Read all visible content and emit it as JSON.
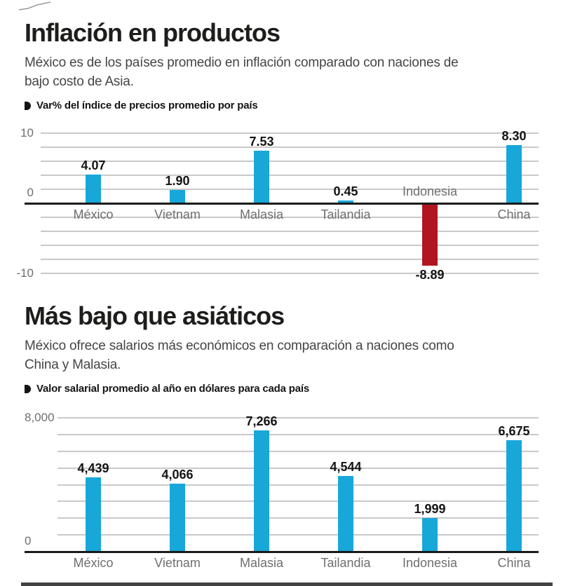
{
  "page": {
    "background": "#ffffff"
  },
  "colors": {
    "bar_blue": "#18a7d9",
    "bar_red": "#b0161f",
    "axis_line": "#1a1a1a",
    "gridline": "#c9c9c9",
    "title_text": "#1d1d1b",
    "subtitle_text": "#454545",
    "muted_label": "#6f6f6f",
    "value_label": "#141414",
    "footer_bar": "#424242"
  },
  "sections": [
    {
      "title": "Inflación en productos",
      "subtitle_lines": [
        "México es de los países promedio en inflación comparado con naciones de",
        "bajo costo de Asia."
      ],
      "legend_label": "Var% del índice de precios promedio por país"
    },
    {
      "title": "Más bajo que asiáticos",
      "subtitle_lines": [
        "México ofrece salarios más económicos en comparación a naciones como",
        "China y Malasia."
      ],
      "legend_label": "Valor salarial promedio al año en dólares para cada país"
    }
  ],
  "chart_data": [
    {
      "type": "bar",
      "title": "Var% del índice de precios promedio por país",
      "categories": [
        "México",
        "Vietnam",
        "Malasia",
        "Tailandia",
        "Indonesia",
        "China"
      ],
      "values": [
        4.07,
        1.9,
        7.53,
        0.45,
        -8.89,
        8.3
      ],
      "value_labels": [
        "4.07",
        "1.90",
        "7.53",
        "0.45",
        "-8.89",
        "8.30"
      ],
      "ylim": [
        -10,
        10
      ],
      "grid_step": 2,
      "yticks": [
        {
          "value": 10,
          "label": "10"
        },
        {
          "value": 0,
          "label": "0"
        },
        {
          "value": -10,
          "label": "-10"
        }
      ],
      "bar_color": "#18a7d9",
      "negative_bar_color": "#b0161f",
      "grid": true,
      "legend_position": "above-chart-left"
    },
    {
      "type": "bar",
      "title": "Valor salarial promedio al año en dólares para cada país",
      "categories": [
        "México",
        "Vietnam",
        "Malasia",
        "Tailandia",
        "Indonesia",
        "China"
      ],
      "values": [
        4439,
        4066,
        7266,
        4544,
        1999,
        6675
      ],
      "value_labels": [
        "4,439",
        "4,066",
        "7,266",
        "4,544",
        "1,999",
        "6,675"
      ],
      "ylim": [
        0,
        8000
      ],
      "grid_step": 1000,
      "yticks": [
        {
          "value": 8000,
          "label": "8,000"
        },
        {
          "value": 0,
          "label": "0"
        }
      ],
      "bar_color": "#18a7d9",
      "negative_bar_color": "#b0161f",
      "grid": true,
      "legend_position": "above-chart-left"
    }
  ]
}
